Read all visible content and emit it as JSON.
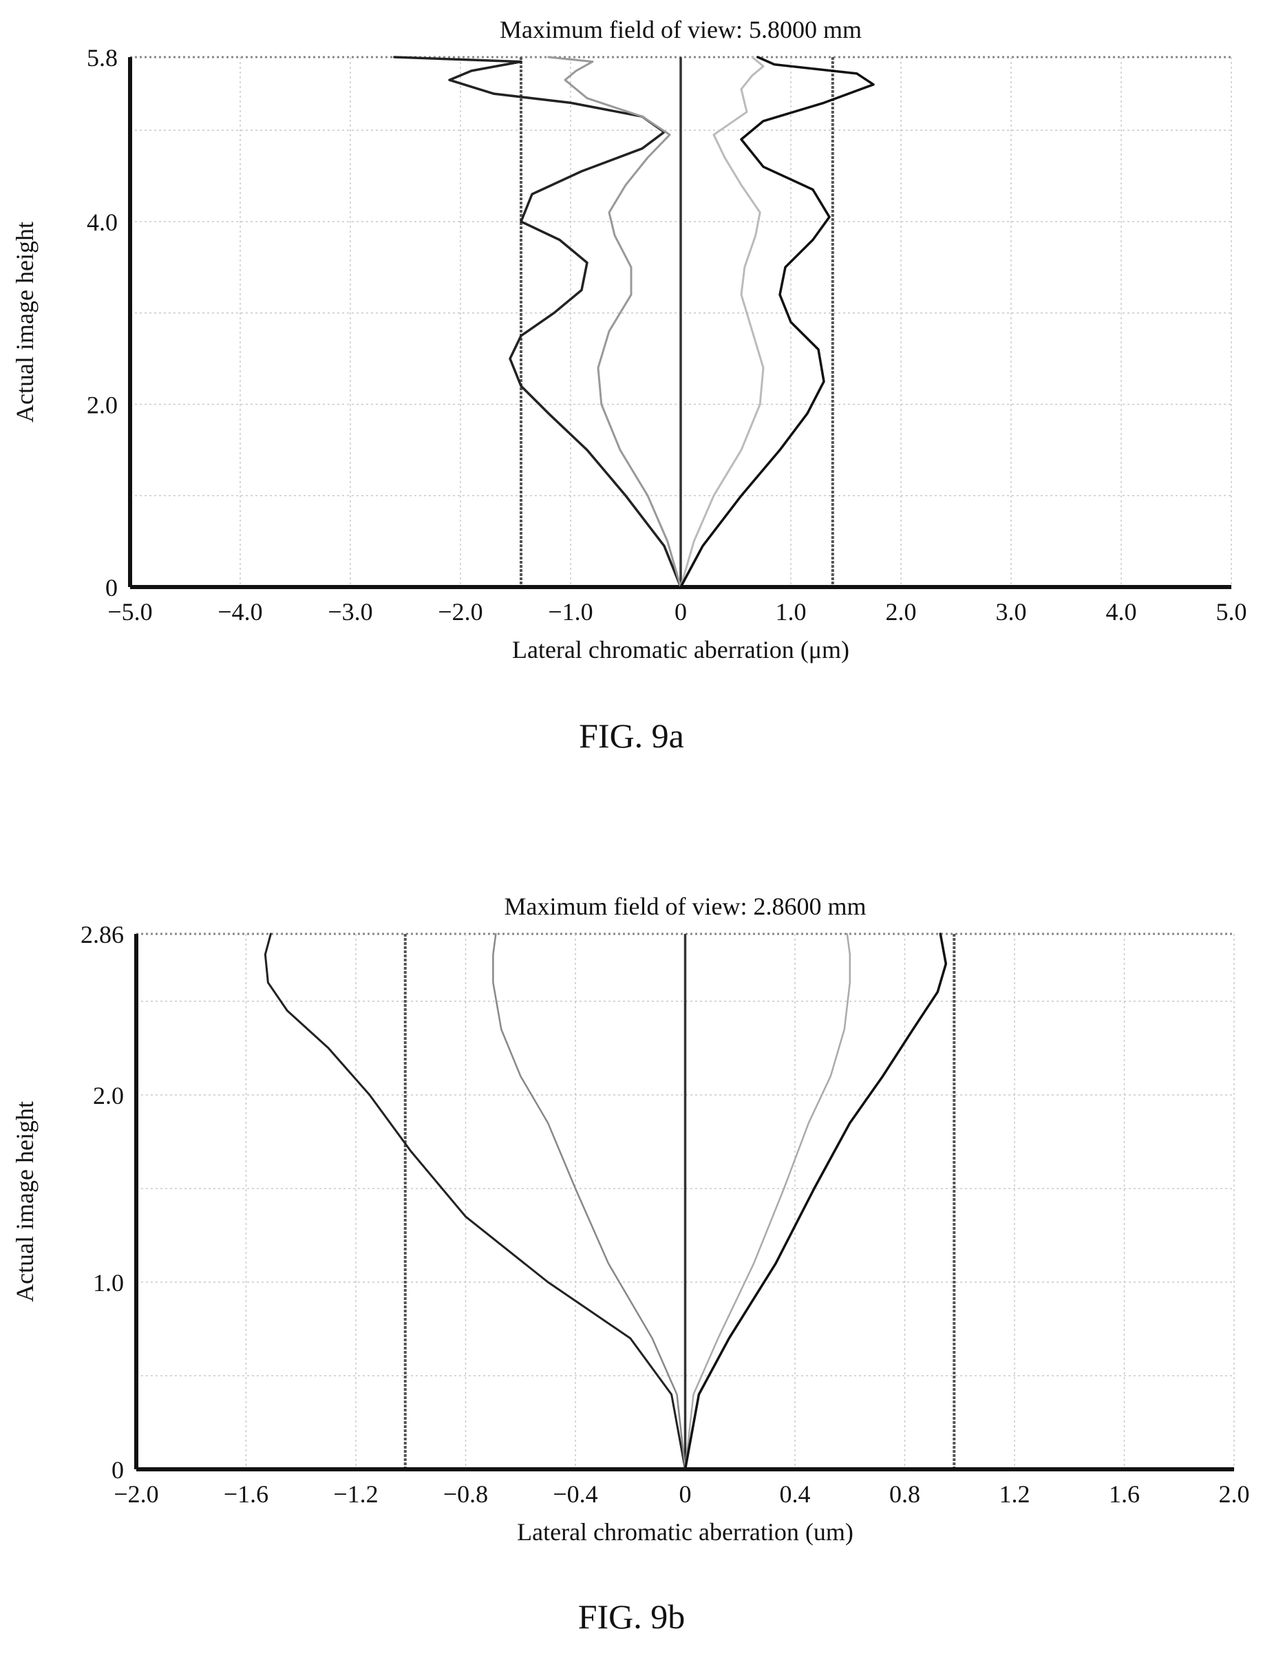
{
  "figures": [
    {
      "caption": "FIG. 9a"
    },
    {
      "caption": "FIG. 9b"
    }
  ],
  "chart_data": [
    {
      "type": "line",
      "title": "Maximum field of view: 5.8000 mm",
      "xlabel": "Lateral chromatic aberration (μm)",
      "ylabel": "Actual image height",
      "xlim": [
        -5.0,
        5.0
      ],
      "ylim": [
        0,
        5.8
      ],
      "x_ticks": [
        -5.0,
        -4.0,
        -3.0,
        -2.0,
        -1.0,
        0,
        1.0,
        2.0,
        3.0,
        4.0,
        5.0
      ],
      "x_tick_labels": [
        "−5.0",
        "−4.0",
        "−3.0",
        "−2.0",
        "−1.0",
        "0",
        "1.0",
        "2.0",
        "3.0",
        "4.0",
        "5.0"
      ],
      "y_ticks": [
        0,
        2.0,
        4.0,
        5.8
      ],
      "y_tick_labels": [
        "0",
        "2.0",
        "4.0",
        "5.8"
      ],
      "grid": true,
      "series": [
        {
          "color": "#222222",
          "width": 3.5,
          "points": [
            [
              0,
              0
            ],
            [
              -0.15,
              0.45
            ],
            [
              -0.5,
              1.0
            ],
            [
              -0.85,
              1.5
            ],
            [
              -1.2,
              1.9
            ],
            [
              -1.45,
              2.2
            ],
            [
              -1.55,
              2.5
            ],
            [
              -1.45,
              2.75
            ],
            [
              -1.15,
              3.0
            ],
            [
              -0.9,
              3.25
            ],
            [
              -0.85,
              3.55
            ],
            [
              -1.1,
              3.8
            ],
            [
              -1.45,
              4.0
            ],
            [
              -1.35,
              4.3
            ],
            [
              -0.9,
              4.55
            ],
            [
              -0.35,
              4.8
            ],
            [
              -0.15,
              4.98
            ],
            [
              -0.35,
              5.15
            ],
            [
              -1.0,
              5.3
            ],
            [
              -1.7,
              5.4
            ],
            [
              -2.1,
              5.55
            ],
            [
              -1.9,
              5.65
            ],
            [
              -1.45,
              5.75
            ],
            [
              -2.6,
              5.8
            ]
          ]
        },
        {
          "color": "#999999",
          "width": 3,
          "points": [
            [
              0,
              0
            ],
            [
              -0.12,
              0.5
            ],
            [
              -0.3,
              1.0
            ],
            [
              -0.55,
              1.5
            ],
            [
              -0.72,
              2.0
            ],
            [
              -0.75,
              2.4
            ],
            [
              -0.65,
              2.8
            ],
            [
              -0.45,
              3.2
            ],
            [
              -0.45,
              3.5
            ],
            [
              -0.6,
              3.85
            ],
            [
              -0.65,
              4.1
            ],
            [
              -0.5,
              4.4
            ],
            [
              -0.3,
              4.7
            ],
            [
              -0.1,
              4.95
            ],
            [
              -0.35,
              5.15
            ],
            [
              -0.85,
              5.35
            ],
            [
              -1.05,
              5.55
            ],
            [
              -0.95,
              5.65
            ],
            [
              -0.8,
              5.75
            ],
            [
              -1.2,
              5.8
            ]
          ]
        },
        {
          "color": "#bbbbbb",
          "width": 3,
          "points": [
            [
              0,
              0
            ],
            [
              0.12,
              0.5
            ],
            [
              0.3,
              1.0
            ],
            [
              0.55,
              1.5
            ],
            [
              0.72,
              2.0
            ],
            [
              0.75,
              2.4
            ],
            [
              0.65,
              2.8
            ],
            [
              0.55,
              3.2
            ],
            [
              0.58,
              3.5
            ],
            [
              0.68,
              3.85
            ],
            [
              0.72,
              4.1
            ],
            [
              0.55,
              4.4
            ],
            [
              0.4,
              4.7
            ],
            [
              0.3,
              4.95
            ],
            [
              0.6,
              5.2
            ],
            [
              0.55,
              5.45
            ],
            [
              0.65,
              5.6
            ],
            [
              0.75,
              5.7
            ],
            [
              0.65,
              5.8
            ]
          ]
        },
        {
          "color": "#111111",
          "width": 3.5,
          "points": [
            [
              0,
              0
            ],
            [
              0.2,
              0.45
            ],
            [
              0.55,
              1.0
            ],
            [
              0.9,
              1.5
            ],
            [
              1.15,
              1.9
            ],
            [
              1.3,
              2.25
            ],
            [
              1.25,
              2.6
            ],
            [
              1.0,
              2.9
            ],
            [
              0.9,
              3.2
            ],
            [
              0.95,
              3.5
            ],
            [
              1.2,
              3.8
            ],
            [
              1.35,
              4.05
            ],
            [
              1.2,
              4.35
            ],
            [
              0.75,
              4.6
            ],
            [
              0.55,
              4.9
            ],
            [
              0.75,
              5.1
            ],
            [
              1.3,
              5.3
            ],
            [
              1.75,
              5.5
            ],
            [
              1.6,
              5.62
            ],
            [
              0.85,
              5.72
            ],
            [
              0.7,
              5.8
            ]
          ]
        }
      ],
      "reference_lines_x": [
        -1.45,
        0,
        1.38
      ]
    },
    {
      "type": "line",
      "title": "Maximum field of view: 2.8600 mm",
      "xlabel": "Lateral chromatic aberration (um)",
      "ylabel": "Actual image height",
      "xlim": [
        -2.0,
        2.0
      ],
      "ylim": [
        0,
        2.86
      ],
      "x_ticks": [
        -2.0,
        -1.6,
        -1.2,
        -0.8,
        -0.4,
        0,
        0.4,
        0.8,
        1.2,
        1.6,
        2.0
      ],
      "x_tick_labels": [
        "−2.0",
        "−1.6",
        "−1.2",
        "−0.8",
        "−0.4",
        "0",
        "0.4",
        "0.8",
        "1.2",
        "1.6",
        "2.0"
      ],
      "y_ticks": [
        0,
        1.0,
        2.0,
        2.86
      ],
      "y_tick_labels": [
        "0",
        "1.0",
        "2.0",
        "2.86"
      ],
      "grid": true,
      "series": [
        {
          "color": "#222222",
          "width": 3,
          "points": [
            [
              0,
              0
            ],
            [
              -0.05,
              0.4
            ],
            [
              -0.2,
              0.7
            ],
            [
              -0.5,
              1.0
            ],
            [
              -0.8,
              1.35
            ],
            [
              -1.0,
              1.7
            ],
            [
              -1.15,
              2.0
            ],
            [
              -1.3,
              2.25
            ],
            [
              -1.45,
              2.45
            ],
            [
              -1.52,
              2.6
            ],
            [
              -1.53,
              2.75
            ],
            [
              -1.51,
              2.86
            ]
          ]
        },
        {
          "color": "#888888",
          "width": 2.5,
          "points": [
            [
              0,
              0
            ],
            [
              -0.03,
              0.4
            ],
            [
              -0.12,
              0.7
            ],
            [
              -0.28,
              1.1
            ],
            [
              -0.4,
              1.5
            ],
            [
              -0.5,
              1.85
            ],
            [
              -0.6,
              2.1
            ],
            [
              -0.67,
              2.35
            ],
            [
              -0.7,
              2.6
            ],
            [
              -0.7,
              2.75
            ],
            [
              -0.69,
              2.86
            ]
          ]
        },
        {
          "color": "#aaaaaa",
          "width": 2.5,
          "points": [
            [
              0,
              0
            ],
            [
              0.03,
              0.4
            ],
            [
              0.12,
              0.7
            ],
            [
              0.25,
              1.1
            ],
            [
              0.36,
              1.5
            ],
            [
              0.45,
              1.85
            ],
            [
              0.53,
              2.1
            ],
            [
              0.58,
              2.35
            ],
            [
              0.6,
              2.6
            ],
            [
              0.6,
              2.75
            ],
            [
              0.59,
              2.86
            ]
          ]
        },
        {
          "color": "#111111",
          "width": 3.5,
          "points": [
            [
              0,
              0
            ],
            [
              0.05,
              0.4
            ],
            [
              0.16,
              0.7
            ],
            [
              0.33,
              1.1
            ],
            [
              0.47,
              1.5
            ],
            [
              0.6,
              1.85
            ],
            [
              0.72,
              2.1
            ],
            [
              0.83,
              2.35
            ],
            [
              0.92,
              2.55
            ],
            [
              0.95,
              2.7
            ],
            [
              0.93,
              2.86
            ]
          ]
        }
      ],
      "reference_lines_x": [
        -1.02,
        0,
        0.98
      ]
    }
  ]
}
